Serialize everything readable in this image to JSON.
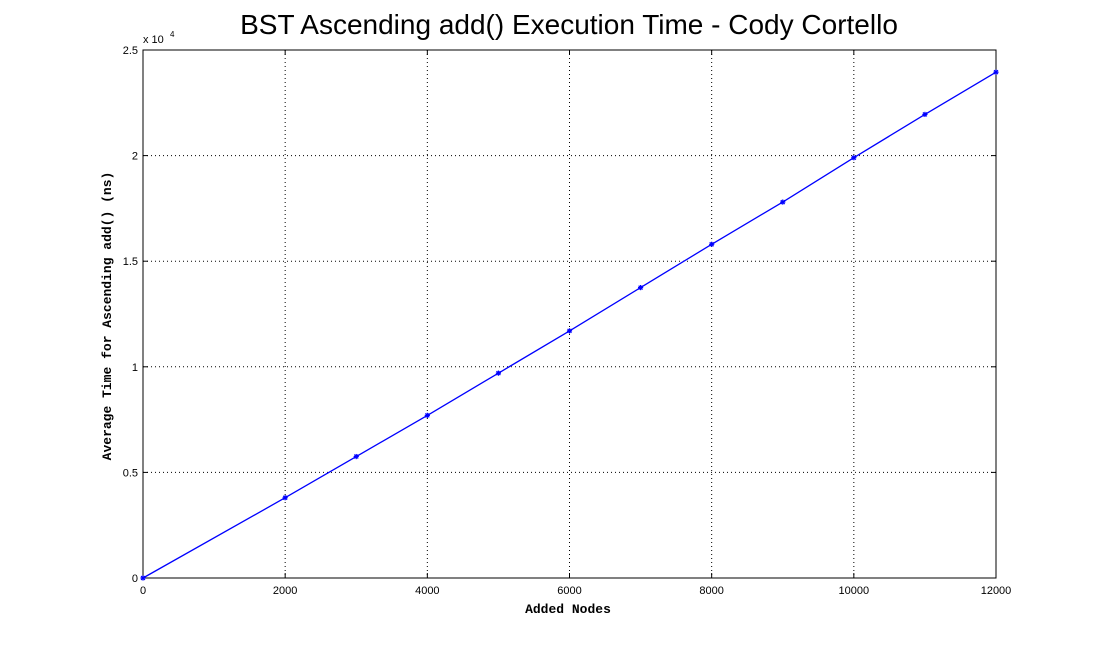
{
  "chart_data": {
    "type": "line",
    "title": "BST Ascending add() Execution Time - Cody Cortello",
    "xlabel": "Added Nodes",
    "ylabel": "Average Time for Ascending add() (ns)",
    "xlim": [
      0,
      12000
    ],
    "ylim": [
      0,
      25000
    ],
    "xticks": [
      0,
      2000,
      4000,
      6000,
      8000,
      10000,
      12000
    ],
    "yticks": [
      0,
      5000,
      10000,
      15000,
      20000,
      25000
    ],
    "ytick_labels": [
      "0",
      "0.5",
      "1",
      "1.5",
      "2",
      "2.5"
    ],
    "y_exponent_label": {
      "prefix": "x 10",
      "power": "4"
    },
    "grid": true,
    "line_color": "#0000ff",
    "series": [
      {
        "x": [
          0,
          2000,
          3000,
          4000,
          5000,
          6000,
          7000,
          8000,
          9000,
          10000,
          11000,
          12000
        ],
        "y": [
          0,
          3800,
          5750,
          7700,
          9700,
          11700,
          13750,
          15800,
          17800,
          19900,
          21950,
          23950
        ]
      }
    ]
  }
}
